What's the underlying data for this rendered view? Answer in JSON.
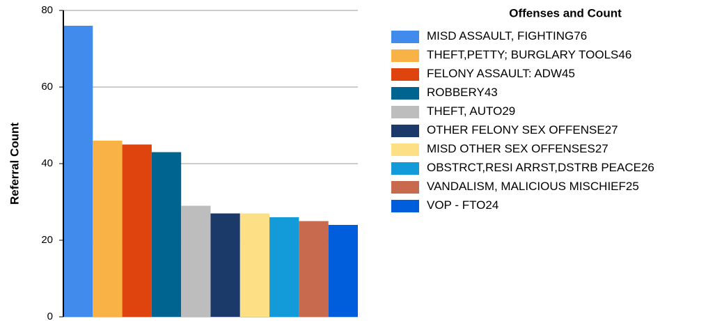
{
  "chart_data": {
    "type": "bar",
    "y_label": "Referral Count",
    "legend_title": "Offenses and Count",
    "categories": [
      "MISD ASSAULT, FIGHTING",
      "THEFT,PETTY; BURGLARY TOOLS",
      "FELONY ASSAULT: ADW",
      "ROBBERY",
      "THEFT, AUTO",
      "OTHER FELONY SEX OFFENSE",
      "MISD OTHER SEX OFFENSES",
      "OBSTRCT,RESI ARRST,DSTRB PEACE",
      "VANDALISM, MALICIOUS MISCHIEF",
      "VOP - FTO"
    ],
    "values": [
      76,
      46,
      45,
      43,
      29,
      27,
      27,
      26,
      25,
      24
    ],
    "colors": [
      "#418bec",
      "#f9b246",
      "#e0440e",
      "#006491",
      "#bdbdbd",
      "#1b3a69",
      "#fddf85",
      "#139ad9",
      "#c86a4e",
      "#005ddc"
    ],
    "ylim": [
      0,
      80
    ],
    "yticks": [
      0,
      20,
      40,
      60,
      80
    ],
    "grid": true
  }
}
